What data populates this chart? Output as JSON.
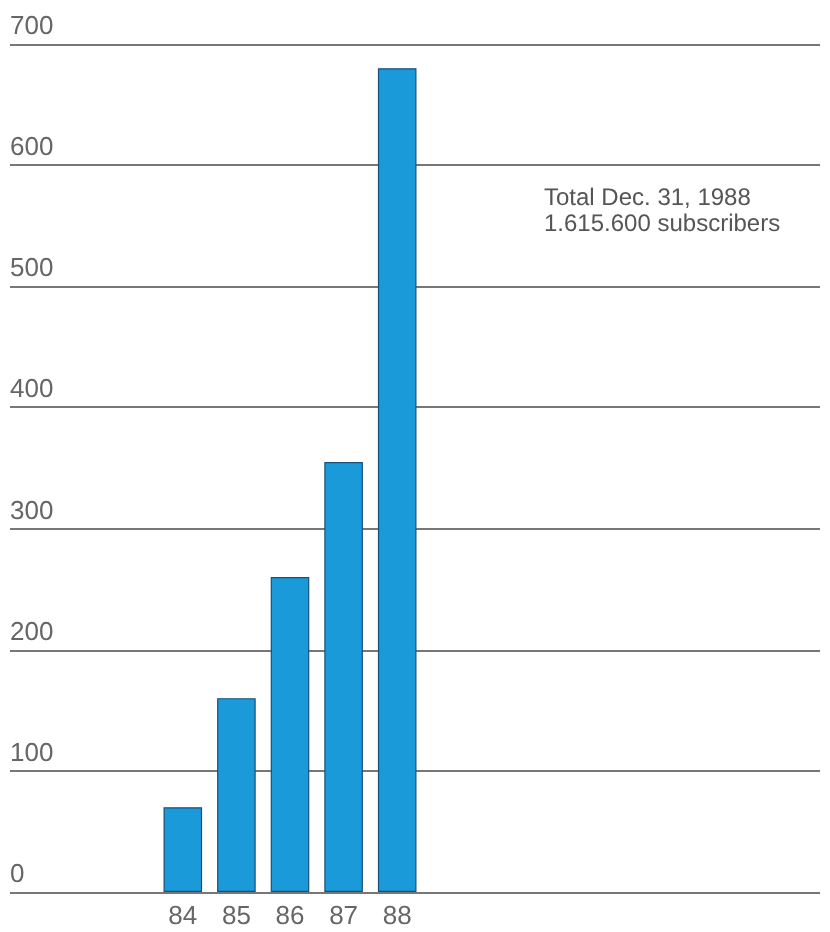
{
  "chart_data": {
    "type": "bar",
    "categories": [
      "84",
      "85",
      "86",
      "87",
      "88"
    ],
    "values": [
      70,
      160,
      260,
      355,
      680
    ],
    "color": "#1a9ad9",
    "ylim": [
      0,
      700
    ],
    "yticks": [
      0,
      100,
      200,
      300,
      400,
      500,
      600,
      700
    ],
    "grid": "y",
    "annotations": [
      "Total Dec. 31, 1988\n1.615.600 subscribers"
    ]
  }
}
